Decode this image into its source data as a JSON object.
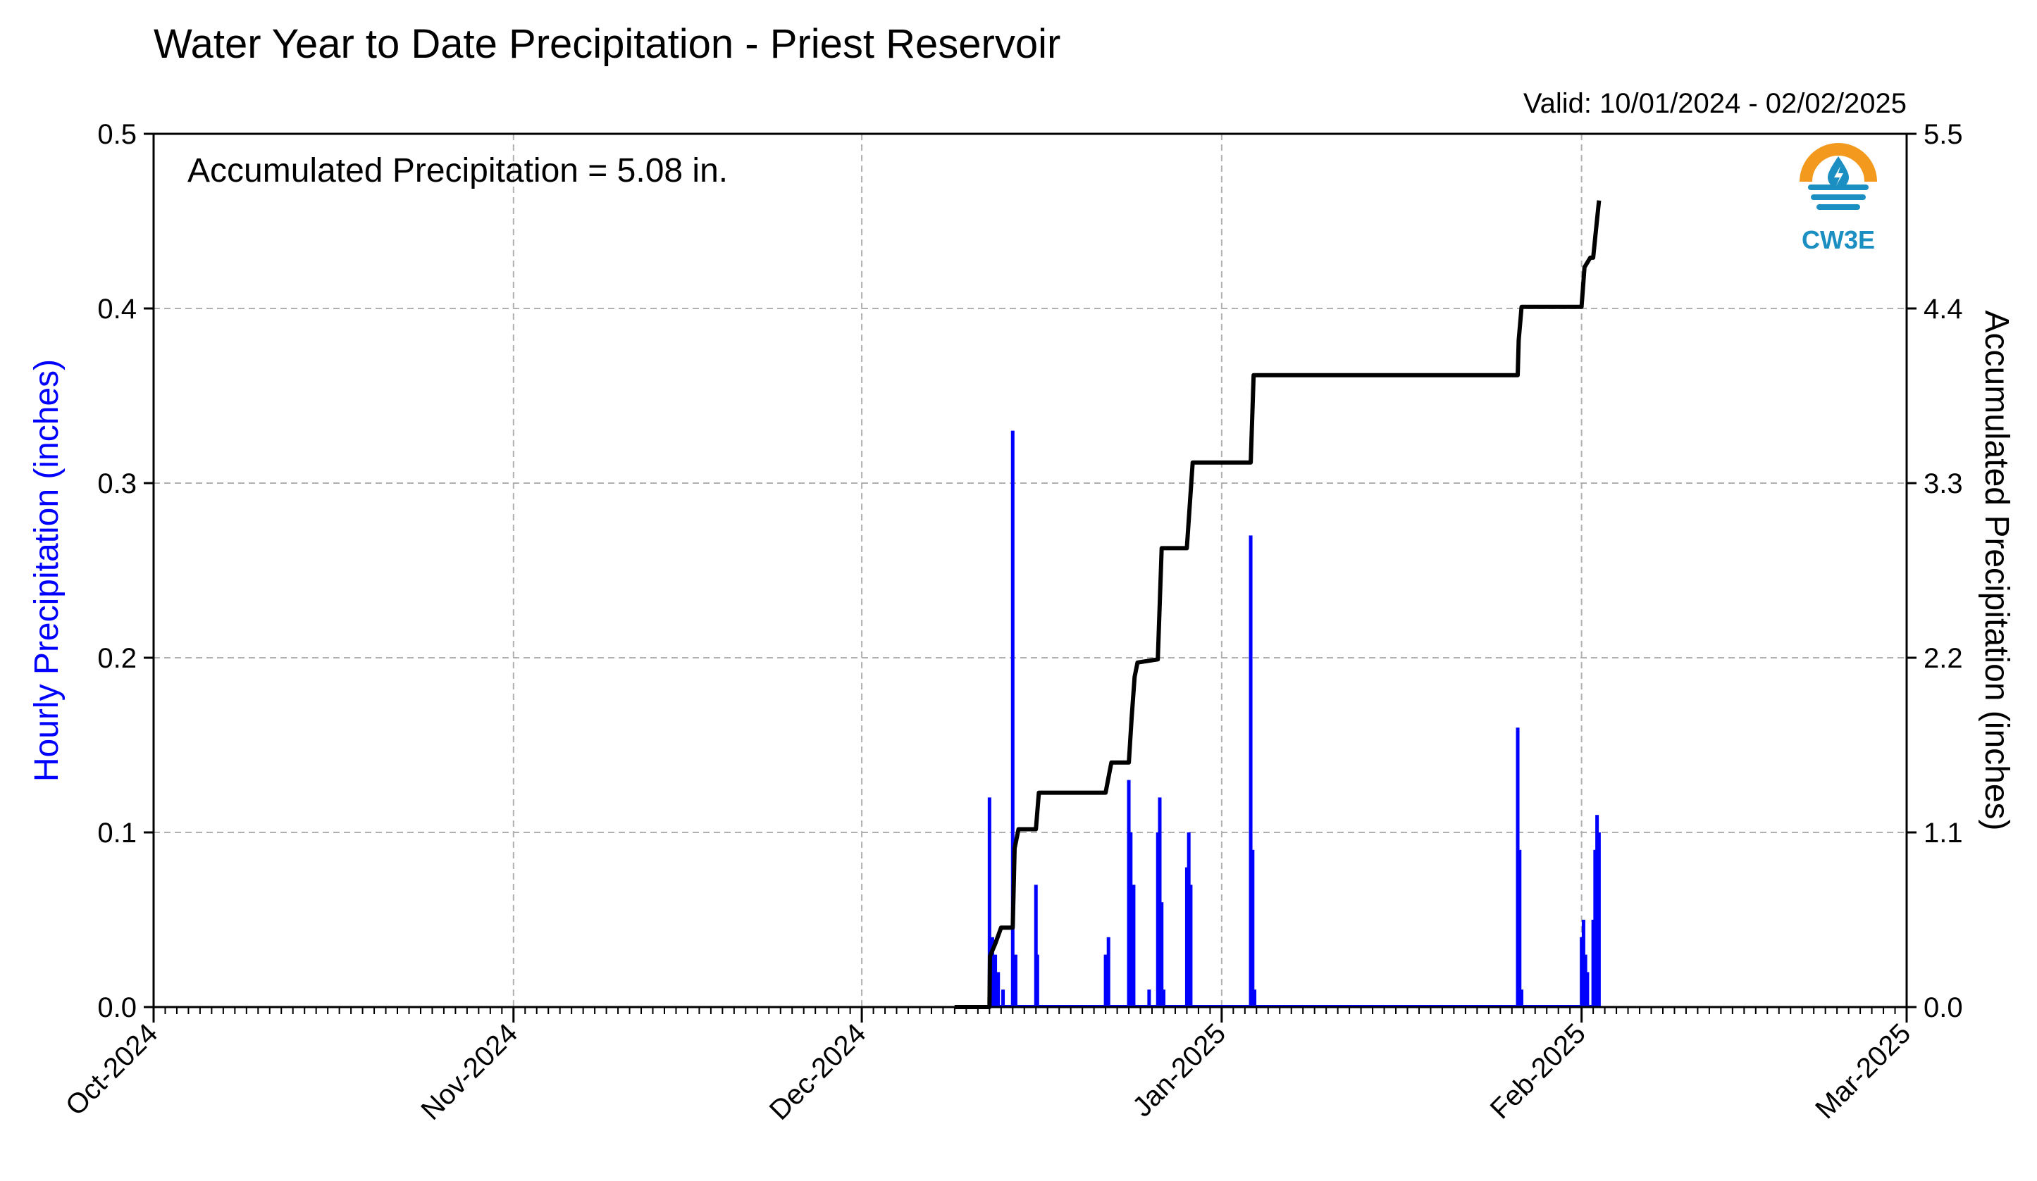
{
  "chart_data": {
    "type": "bar",
    "title": "Water Year to Date Precipitation - Priest Reservoir",
    "valid_label": "Valid: 10/01/2024 - 02/02/2025",
    "annotation": "Accumulated Precipitation = 5.08 in.",
    "ylabel": "Hourly Precipitation (inches)",
    "y2label": "Accumulated Precipitation (inches)",
    "ylim": [
      0,
      0.5
    ],
    "y2lim": [
      0,
      5.5
    ],
    "yticks": [
      "0.0",
      "0.1",
      "0.2",
      "0.3",
      "0.4",
      "0.5"
    ],
    "y2ticks": [
      "0.0",
      "1.1",
      "2.2",
      "3.3",
      "4.4",
      "5.5"
    ],
    "x_start": "2024-10-01",
    "x_end": "2025-03-01",
    "xticks": [
      {
        "date": "2024-10-01",
        "label": "Oct-2024"
      },
      {
        "date": "2024-11-01",
        "label": "Nov-2024"
      },
      {
        "date": "2024-12-01",
        "label": "Dec-2024"
      },
      {
        "date": "2025-01-01",
        "label": "Jan-2025"
      },
      {
        "date": "2025-02-01",
        "label": "Feb-2025"
      },
      {
        "date": "2025-03-01",
        "label": "Mar-2025"
      }
    ],
    "grid": true,
    "logo_text": "CW3E",
    "colors": {
      "hourly": "#0000ff",
      "accumulated": "#000000",
      "grid": "#b0b0b0",
      "logo_orange": "#f39a1e",
      "logo_blue": "#1b8fc1"
    },
    "series": [
      {
        "name": "Hourly Precipitation",
        "type": "bar",
        "points": [
          {
            "x": "2024-12-12T00:00",
            "y": 0.12
          },
          {
            "x": "2024-12-12T06:00",
            "y": 0.04
          },
          {
            "x": "2024-12-12T12:00",
            "y": 0.03
          },
          {
            "x": "2024-12-12T18:00",
            "y": 0.02
          },
          {
            "x": "2024-12-13T04:00",
            "y": 0.01
          },
          {
            "x": "2024-12-14T00:00",
            "y": 0.33
          },
          {
            "x": "2024-12-14T06:00",
            "y": 0.03
          },
          {
            "x": "2024-12-16T00:00",
            "y": 0.07
          },
          {
            "x": "2024-12-16T03:00",
            "y": 0.03
          },
          {
            "x": "2024-12-22T00:00",
            "y": 0.03
          },
          {
            "x": "2024-12-22T06:00",
            "y": 0.04
          },
          {
            "x": "2024-12-24T00:00",
            "y": 0.13
          },
          {
            "x": "2024-12-24T04:00",
            "y": 0.1
          },
          {
            "x": "2024-12-24T10:00",
            "y": 0.07
          },
          {
            "x": "2024-12-25T18:00",
            "y": 0.01
          },
          {
            "x": "2024-12-26T12:00",
            "y": 0.1
          },
          {
            "x": "2024-12-26T16:00",
            "y": 0.12
          },
          {
            "x": "2024-12-26T20:00",
            "y": 0.06
          },
          {
            "x": "2024-12-27T00:00",
            "y": 0.01
          },
          {
            "x": "2024-12-29T00:00",
            "y": 0.08
          },
          {
            "x": "2024-12-29T04:00",
            "y": 0.1
          },
          {
            "x": "2024-12-29T08:00",
            "y": 0.07
          },
          {
            "x": "2025-01-03T12:00",
            "y": 0.27
          },
          {
            "x": "2025-01-03T16:00",
            "y": 0.09
          },
          {
            "x": "2025-01-03T20:00",
            "y": 0.01
          },
          {
            "x": "2025-01-26T12:00",
            "y": 0.16
          },
          {
            "x": "2025-01-26T16:00",
            "y": 0.09
          },
          {
            "x": "2025-01-26T20:00",
            "y": 0.01
          },
          {
            "x": "2025-02-01T00:00",
            "y": 0.04
          },
          {
            "x": "2025-02-01T04:00",
            "y": 0.05
          },
          {
            "x": "2025-02-01T08:00",
            "y": 0.03
          },
          {
            "x": "2025-02-01T12:00",
            "y": 0.02
          },
          {
            "x": "2025-02-02T00:00",
            "y": 0.05
          },
          {
            "x": "2025-02-02T04:00",
            "y": 0.09
          },
          {
            "x": "2025-02-02T08:00",
            "y": 0.11
          },
          {
            "x": "2025-02-02T12:00",
            "y": 0.1
          }
        ]
      },
      {
        "name": "Accumulated Precipitation",
        "type": "line",
        "axis": "right",
        "points": [
          {
            "x": "2024-12-09T00:00",
            "y": 0.0
          },
          {
            "x": "2024-12-12T00:00",
            "y": 0.0
          },
          {
            "x": "2024-12-12T01:00",
            "y": 0.32
          },
          {
            "x": "2024-12-12T12:00",
            "y": 0.4
          },
          {
            "x": "2024-12-13T00:00",
            "y": 0.5
          },
          {
            "x": "2024-12-13T12:00",
            "y": 0.5
          },
          {
            "x": "2024-12-14T00:00",
            "y": 0.5
          },
          {
            "x": "2024-12-14T04:00",
            "y": 1.0
          },
          {
            "x": "2024-12-14T12:00",
            "y": 1.12
          },
          {
            "x": "2024-12-16T00:00",
            "y": 1.12
          },
          {
            "x": "2024-12-16T06:00",
            "y": 1.35
          },
          {
            "x": "2024-12-22T00:00",
            "y": 1.35
          },
          {
            "x": "2024-12-22T12:00",
            "y": 1.54
          },
          {
            "x": "2024-12-24T00:00",
            "y": 1.54
          },
          {
            "x": "2024-12-24T06:00",
            "y": 1.83
          },
          {
            "x": "2024-12-24T12:00",
            "y": 2.08
          },
          {
            "x": "2024-12-24T18:00",
            "y": 2.17
          },
          {
            "x": "2024-12-26T12:00",
            "y": 2.19
          },
          {
            "x": "2024-12-26T20:00",
            "y": 2.89
          },
          {
            "x": "2024-12-29T00:00",
            "y": 2.89
          },
          {
            "x": "2024-12-29T12:00",
            "y": 3.43
          },
          {
            "x": "2025-01-03T12:00",
            "y": 3.43
          },
          {
            "x": "2025-01-03T18:00",
            "y": 3.98
          },
          {
            "x": "2025-01-26T12:00",
            "y": 3.98
          },
          {
            "x": "2025-01-26T14:00",
            "y": 4.2
          },
          {
            "x": "2025-01-26T20:00",
            "y": 4.41
          },
          {
            "x": "2025-02-01T00:00",
            "y": 4.41
          },
          {
            "x": "2025-02-01T06:00",
            "y": 4.66
          },
          {
            "x": "2025-02-01T18:00",
            "y": 4.72
          },
          {
            "x": "2025-02-02T00:00",
            "y": 4.72
          },
          {
            "x": "2025-02-02T06:00",
            "y": 4.9
          },
          {
            "x": "2025-02-02T12:00",
            "y": 5.08
          }
        ]
      }
    ]
  }
}
